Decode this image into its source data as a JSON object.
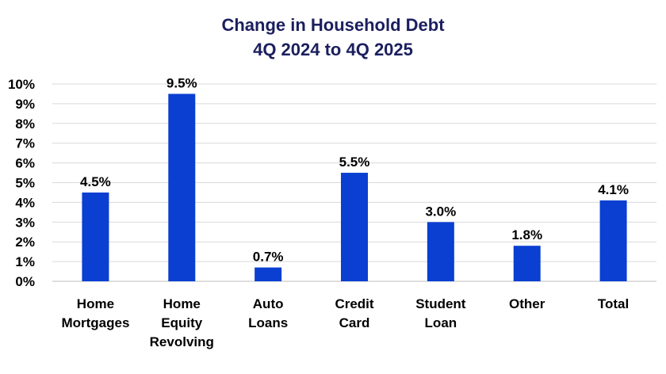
{
  "chart_data": {
    "type": "bar",
    "title": "Change in Household Debt",
    "subtitle": "4Q 2024 to 4Q 2025",
    "categories": [
      [
        "Home",
        "Mortgages"
      ],
      [
        "Home",
        "Equity",
        "Revolving"
      ],
      [
        "Auto",
        "Loans"
      ],
      [
        "Credit",
        "Card"
      ],
      [
        "Student",
        "Loan"
      ],
      [
        "Other"
      ],
      [
        "Total"
      ]
    ],
    "values": [
      4.5,
      9.5,
      0.7,
      5.5,
      3.0,
      1.8,
      4.1
    ],
    "data_labels": [
      "4.5%",
      "9.5%",
      "0.7%",
      "5.5%",
      "3.0%",
      "1.8%",
      "4.1%"
    ],
    "y_ticks": [
      "0%",
      "1%",
      "2%",
      "3%",
      "4%",
      "5%",
      "6%",
      "7%",
      "8%",
      "9%",
      "10%"
    ],
    "ylim": [
      0,
      10
    ],
    "xlabel": "",
    "ylabel": "",
    "grid": true,
    "bar_color": "#0a3fd1",
    "grid_color": "#d9d9d9"
  }
}
